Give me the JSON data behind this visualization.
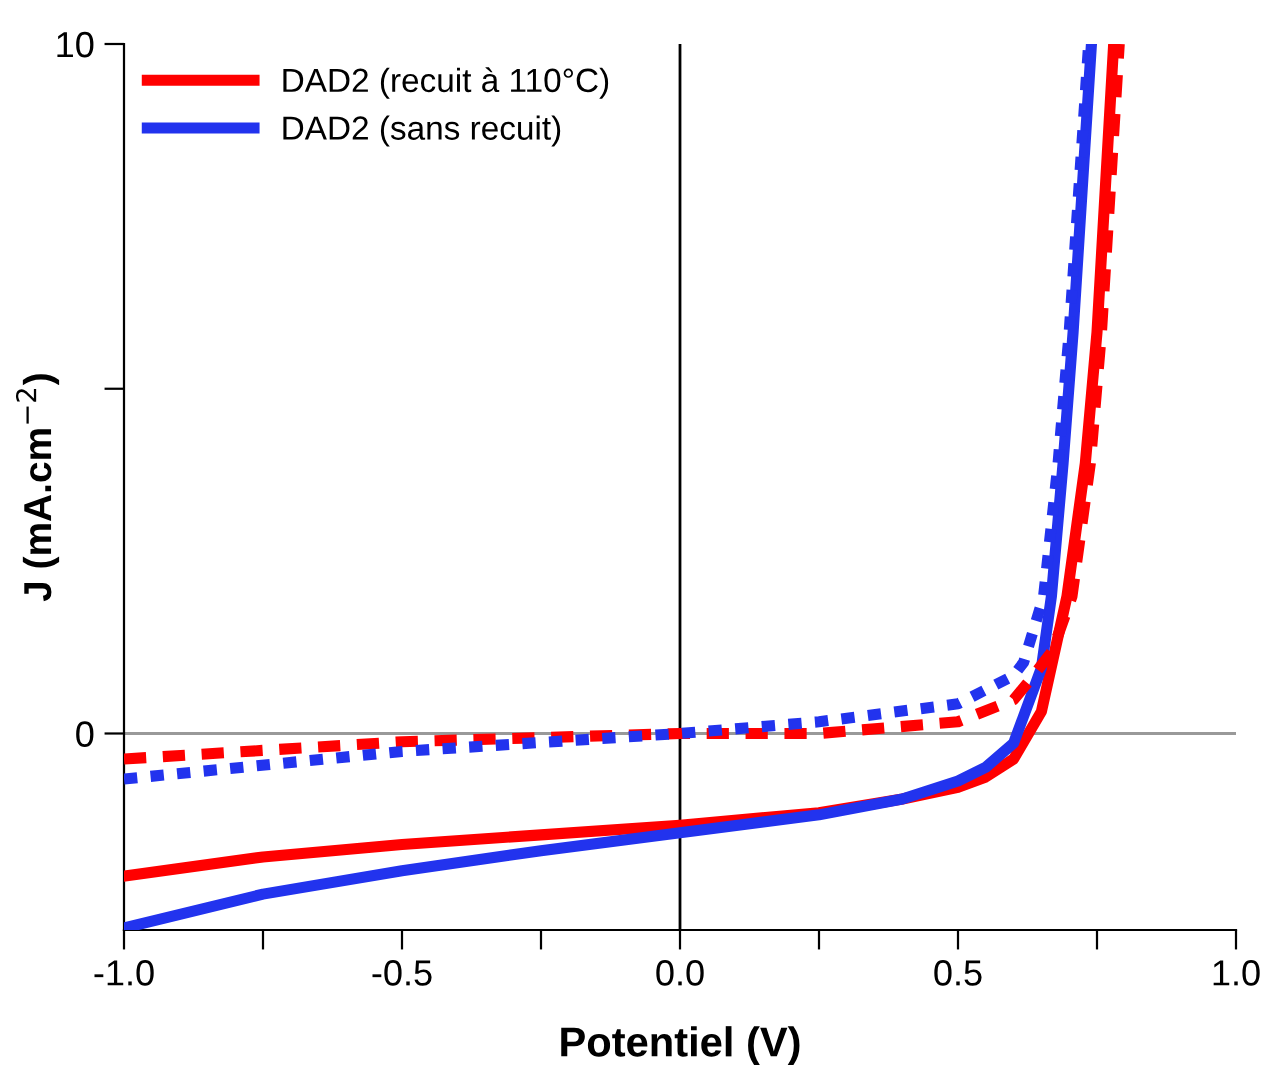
{
  "chart_data": {
    "type": "line",
    "xlabel": "Potentiel (V)",
    "ylabel": "J (mA.cm$^{−2}$)",
    "xlim": [
      -1,
      1
    ],
    "ylim": [
      -2.85,
      10
    ],
    "xticks": [
      {
        "value": -1,
        "label": "-1.0"
      },
      {
        "value": -0.75,
        "label": null
      },
      {
        "value": -0.5,
        "label": "-0.5"
      },
      {
        "value": -0.25,
        "label": null
      },
      {
        "value": 0,
        "label": "0.0"
      },
      {
        "value": 0.25,
        "label": null
      },
      {
        "value": 0.5,
        "label": "0.5"
      },
      {
        "value": 0.75,
        "label": null
      },
      {
        "value": 1,
        "label": "1.0"
      }
    ],
    "yticks": [
      0,
      {
        "value": 5,
        "label": null
      },
      10
    ],
    "grid": false,
    "legend": "top left",
    "marker": "none",
    "ref_lines": [
      {
        "axis": "x",
        "value": 0,
        "color": "#000000"
      },
      {
        "axis": "y",
        "value": 0,
        "color": "#999999"
      }
    ],
    "series": [
      {
        "name": "DAD2 (recuit à 110°C)",
        "color": "#ff0000",
        "line_style": "solid",
        "x": [
          -1,
          -0.75,
          -0.5,
          -0.25,
          0,
          0.25,
          0.4,
          0.5,
          0.55,
          0.6,
          0.65,
          0.696,
          0.729,
          0.75,
          0.78
        ],
        "values": [
          -2.07,
          -1.79,
          -1.61,
          -1.47,
          -1.33,
          -1.15,
          -0.95,
          -0.78,
          -0.63,
          -0.37,
          0.32,
          1.99,
          3.92,
          5.82,
          10
        ]
      },
      {
        "name": "DAD2 (sans recuit)",
        "color": "#2233ee",
        "line_style": "solid",
        "x": [
          -1,
          -0.75,
          -0.5,
          -0.25,
          0,
          0.25,
          0.4,
          0.5,
          0.55,
          0.6,
          0.65,
          0.668,
          0.689,
          0.707,
          0.74
        ],
        "values": [
          -2.82,
          -2.33,
          -1.99,
          -1.7,
          -1.44,
          -1.18,
          -0.95,
          -0.69,
          -0.49,
          -0.14,
          0.95,
          1.99,
          3.92,
          5.82,
          10
        ]
      },
      {
        "color": "#ff0000",
        "line_style": "dashed",
        "x": [
          -1,
          -0.5,
          0,
          0.25,
          0.5,
          0.6,
          0.63,
          0.67,
          0.705,
          0.738,
          0.758,
          0.79
        ],
        "values": [
          -0.37,
          -0.12,
          0,
          0,
          0.17,
          0.49,
          0.78,
          1.2,
          1.99,
          3.92,
          5.82,
          10
        ]
      },
      {
        "color": "#2233ee",
        "line_style": "dotted",
        "x": [
          -1,
          -0.5,
          0,
          0.25,
          0.5,
          0.6,
          0.618,
          0.654,
          0.68,
          0.7,
          0.735
        ],
        "values": [
          -0.66,
          -0.26,
          0,
          0.17,
          0.43,
          0.84,
          1.03,
          1.99,
          3.92,
          5.82,
          10
        ]
      }
    ]
  }
}
